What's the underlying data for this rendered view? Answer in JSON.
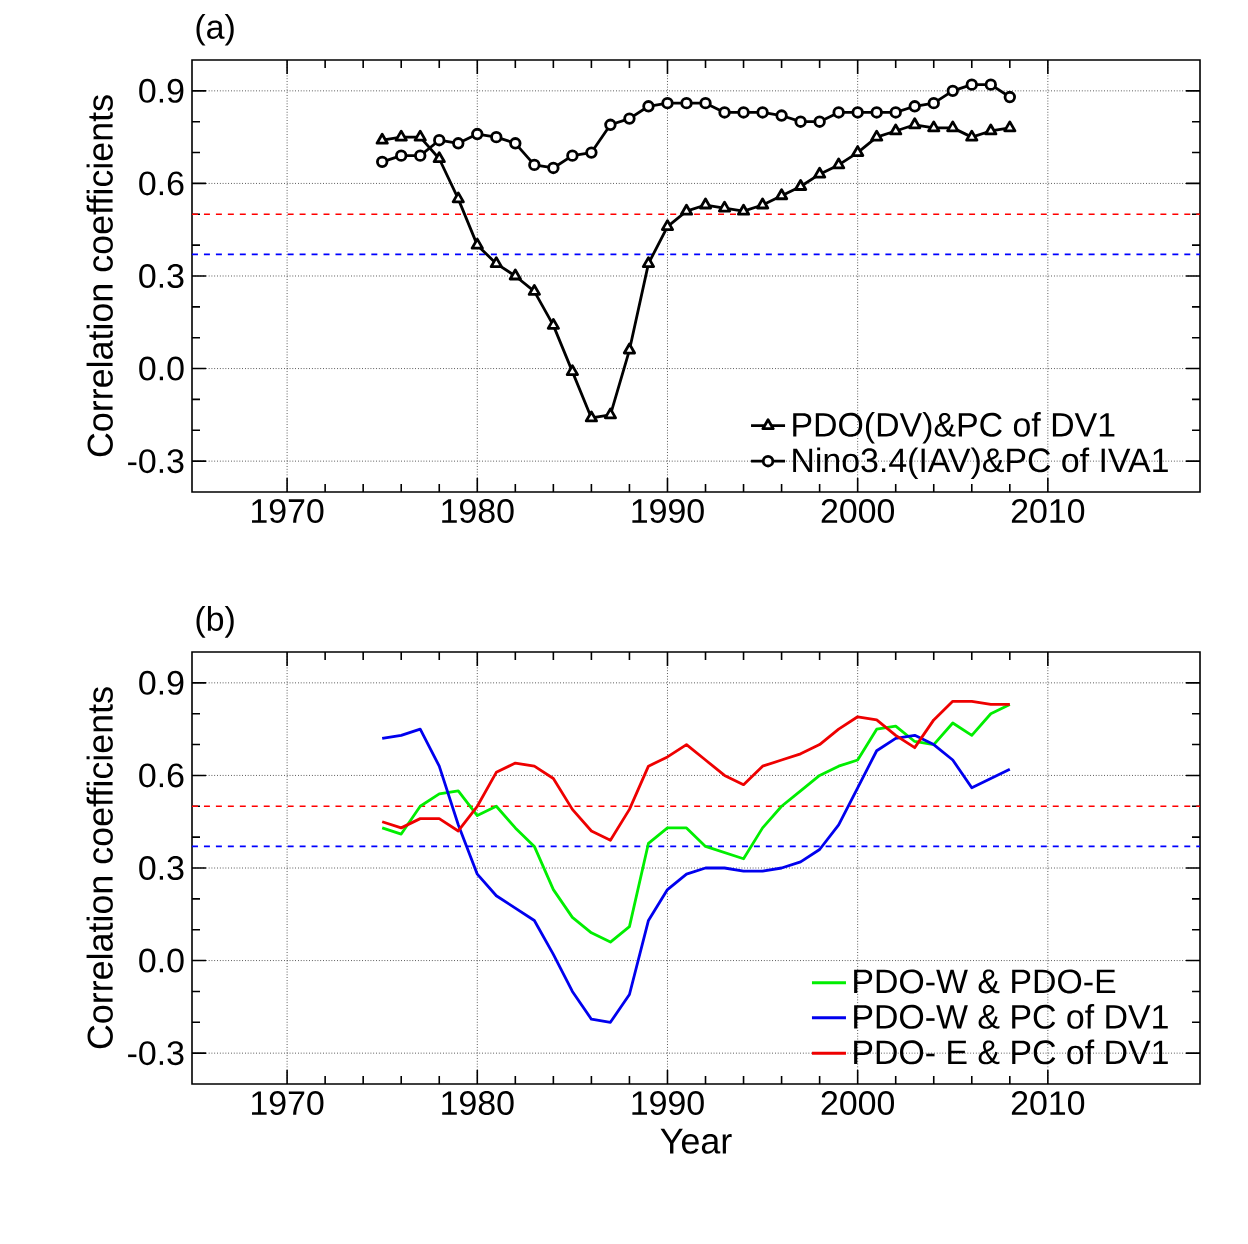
{
  "chart_data": [
    {
      "type": "line",
      "title": "(a)",
      "ylabel": "Correlation coefficients",
      "x": [
        1975,
        1976,
        1977,
        1978,
        1979,
        1980,
        1981,
        1982,
        1983,
        1984,
        1985,
        1986,
        1987,
        1988,
        1989,
        1990,
        1991,
        1992,
        1993,
        1994,
        1995,
        1996,
        1997,
        1998,
        1999,
        2000,
        2001,
        2002,
        2003,
        2004,
        2005,
        2006,
        2007,
        2008
      ],
      "series": [
        {
          "name": "PDO(DV)&PC of DV1",
          "color": "#000000",
          "marker": "triangle",
          "values": [
            0.74,
            0.75,
            0.75,
            0.68,
            0.55,
            0.4,
            0.34,
            0.3,
            0.25,
            0.14,
            -0.01,
            -0.16,
            -0.15,
            0.06,
            0.34,
            0.46,
            0.51,
            0.53,
            0.52,
            0.51,
            0.53,
            0.56,
            0.59,
            0.63,
            0.66,
            0.7,
            0.75,
            0.77,
            0.79,
            0.78,
            0.78,
            0.75,
            0.77,
            0.78
          ]
        },
        {
          "name": "Nino3.4(IAV)&PC of IVA1",
          "color": "#000000",
          "marker": "circle",
          "values": [
            0.67,
            0.69,
            0.69,
            0.74,
            0.73,
            0.76,
            0.75,
            0.73,
            0.66,
            0.65,
            0.69,
            0.7,
            0.79,
            0.81,
            0.85,
            0.86,
            0.86,
            0.86,
            0.83,
            0.83,
            0.83,
            0.82,
            0.8,
            0.8,
            0.83,
            0.83,
            0.83,
            0.83,
            0.85,
            0.86,
            0.9,
            0.92,
            0.92,
            0.88
          ]
        }
      ],
      "xlim": [
        1965,
        2018
      ],
      "ylim": [
        -0.4,
        1.0
      ],
      "xticks": [
        1970,
        1980,
        1990,
        2000,
        2010
      ],
      "yticks": [
        {
          "value": -0.3,
          "label": "-0.3"
        },
        {
          "value": 0.0,
          "label": "0.0"
        },
        {
          "value": 0.3,
          "label": "0.3"
        },
        {
          "value": 0.6,
          "label": "0.6"
        },
        {
          "value": 0.9,
          "label": "0.9"
        }
      ],
      "ref_lines": [
        {
          "axis": "y",
          "value": 0.5,
          "color": "#ff0000",
          "line_style": "dashed"
        },
        {
          "axis": "y",
          "value": 0.37,
          "color": "#0000ff",
          "line_style": "dashed"
        }
      ],
      "grid": true,
      "legend": "bottom right"
    },
    {
      "type": "line",
      "title": "(b)",
      "xlabel": "Year",
      "ylabel": "Correlation coefficients",
      "x": [
        1975,
        1976,
        1977,
        1978,
        1979,
        1980,
        1981,
        1982,
        1983,
        1984,
        1985,
        1986,
        1987,
        1988,
        1989,
        1990,
        1991,
        1992,
        1993,
        1994,
        1995,
        1996,
        1997,
        1998,
        1999,
        2000,
        2001,
        2002,
        2003,
        2004,
        2005,
        2006,
        2007,
        2008
      ],
      "series": [
        {
          "name": "PDO-W & PDO-E",
          "color": "#00ee00",
          "values": [
            0.43,
            0.41,
            0.5,
            0.54,
            0.55,
            0.47,
            0.5,
            0.43,
            0.37,
            0.23,
            0.14,
            0.09,
            0.06,
            0.11,
            0.38,
            0.43,
            0.43,
            0.37,
            0.35,
            0.33,
            0.43,
            0.5,
            0.55,
            0.6,
            0.63,
            0.65,
            0.75,
            0.76,
            0.71,
            0.7,
            0.77,
            0.73,
            0.8,
            0.83
          ]
        },
        {
          "name": "PDO-W & PC of DV1",
          "color": "#0000ee",
          "values": [
            0.72,
            0.73,
            0.75,
            0.63,
            0.44,
            0.28,
            0.21,
            0.17,
            0.13,
            0.02,
            -0.1,
            -0.19,
            -0.2,
            -0.11,
            0.13,
            0.23,
            0.28,
            0.3,
            0.3,
            0.29,
            0.29,
            0.3,
            0.32,
            0.36,
            0.44,
            0.56,
            0.68,
            0.72,
            0.73,
            0.7,
            0.65,
            0.56,
            0.59,
            0.62
          ]
        },
        {
          "name": "PDO- E & PC of DV1",
          "color": "#ee0000",
          "values": [
            0.45,
            0.43,
            0.46,
            0.46,
            0.42,
            0.5,
            0.61,
            0.64,
            0.63,
            0.59,
            0.49,
            0.42,
            0.39,
            0.49,
            0.63,
            0.66,
            0.7,
            0.65,
            0.6,
            0.57,
            0.63,
            0.65,
            0.67,
            0.7,
            0.75,
            0.79,
            0.78,
            0.73,
            0.69,
            0.78,
            0.84,
            0.84,
            0.83,
            0.83
          ]
        }
      ],
      "xlim": [
        1965,
        2018
      ],
      "ylim": [
        -0.4,
        1.0
      ],
      "xticks": [
        1970,
        1980,
        1990,
        2000,
        2010
      ],
      "yticks": [
        {
          "value": -0.3,
          "label": "-0.3"
        },
        {
          "value": 0.0,
          "label": "0.0"
        },
        {
          "value": 0.3,
          "label": "0.3"
        },
        {
          "value": 0.6,
          "label": "0.6"
        },
        {
          "value": 0.9,
          "label": "0.9"
        }
      ],
      "ref_lines": [
        {
          "axis": "y",
          "value": 0.5,
          "color": "#ff0000",
          "line_style": "dashed"
        },
        {
          "axis": "y",
          "value": 0.37,
          "color": "#0000ff",
          "line_style": "dashed"
        }
      ],
      "grid": true,
      "legend": "bottom right"
    }
  ]
}
